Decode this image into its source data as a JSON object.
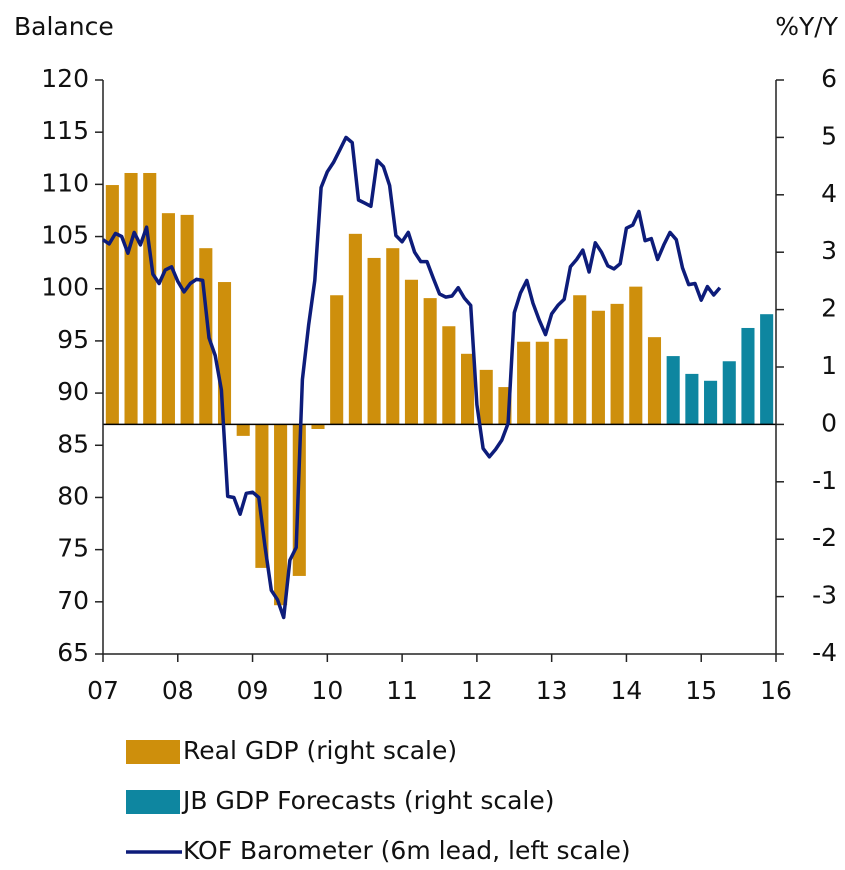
{
  "chart_data": {
    "type": "bar_line",
    "ylabel": "Balance",
    "y2label": "%Y/Y",
    "xlim": [
      2007,
      2016
    ],
    "xticks": [
      {
        "value": 2007,
        "label": "07"
      },
      {
        "value": 2008,
        "label": "08"
      },
      {
        "value": 2009,
        "label": "09"
      },
      {
        "value": 2010,
        "label": "10"
      },
      {
        "value": 2011,
        "label": "11"
      },
      {
        "value": 2012,
        "label": "12"
      },
      {
        "value": 2013,
        "label": "13"
      },
      {
        "value": 2014,
        "label": "14"
      },
      {
        "value": 2015,
        "label": "15"
      },
      {
        "value": 2016,
        "label": "16"
      }
    ],
    "ylim": [
      65,
      120
    ],
    "yticks": [
      65,
      70,
      75,
      80,
      85,
      90,
      95,
      100,
      105,
      110,
      115,
      120
    ],
    "y2lim": [
      -4,
      6
    ],
    "y2ticks": [
      -4,
      -3,
      -2,
      -1,
      0,
      1,
      2,
      3,
      4,
      5,
      6
    ],
    "series": [
      {
        "name": "Real GDP (right scale)",
        "type": "bar",
        "axis": "y2",
        "color": "#CE8F0C",
        "x": [
          2007.125,
          2007.375,
          2007.625,
          2007.875,
          2008.125,
          2008.375,
          2008.625,
          2008.875,
          2009.125,
          2009.375,
          2009.625,
          2009.875,
          2010.125,
          2010.375,
          2010.625,
          2010.875,
          2011.125,
          2011.375,
          2011.625,
          2011.875,
          2012.125,
          2012.375,
          2012.625,
          2012.875,
          2013.125,
          2013.375,
          2013.625,
          2013.875,
          2014.125,
          2014.375
        ],
        "values": [
          4.17,
          4.38,
          4.38,
          3.68,
          3.65,
          3.07,
          2.48,
          -0.2,
          -2.5,
          -3.15,
          -2.64,
          -0.08,
          2.25,
          3.32,
          2.9,
          3.07,
          2.52,
          2.2,
          1.71,
          1.23,
          0.95,
          0.65,
          1.44,
          1.44,
          1.49,
          2.25,
          1.98,
          2.1,
          2.4,
          1.52
        ]
      },
      {
        "name": "JB GDP Forecasts (right scale)",
        "type": "bar",
        "axis": "y2",
        "color": "#0E86A0",
        "x": [
          2014.625,
          2014.875,
          2015.125,
          2015.375,
          2015.625,
          2015.875
        ],
        "values": [
          1.19,
          0.88,
          0.76,
          1.1,
          1.68,
          1.92
        ]
      },
      {
        "name": "KOF Barometer (6m lead, left scale)",
        "type": "line",
        "color": "#0D1C7A",
        "x": [
          2007,
          2007.083,
          2007.167,
          2007.25,
          2007.333,
          2007.417,
          2007.5,
          2007.583,
          2007.667,
          2007.75,
          2007.833,
          2007.917,
          2008,
          2008.083,
          2008.167,
          2008.25,
          2008.333,
          2008.417,
          2008.5,
          2008.583,
          2008.667,
          2008.75,
          2008.833,
          2008.917,
          2009,
          2009.083,
          2009.167,
          2009.25,
          2009.333,
          2009.417,
          2009.5,
          2009.583,
          2009.667,
          2009.75,
          2009.833,
          2009.917,
          2010,
          2010.083,
          2010.167,
          2010.25,
          2010.333,
          2010.417,
          2010.5,
          2010.583,
          2010.667,
          2010.75,
          2010.833,
          2010.917,
          2011,
          2011.083,
          2011.167,
          2011.25,
          2011.333,
          2011.417,
          2011.5,
          2011.583,
          2011.667,
          2011.75,
          2011.833,
          2011.917,
          2012,
          2012.083,
          2012.167,
          2012.25,
          2012.333,
          2012.417,
          2012.5,
          2012.583,
          2012.667,
          2012.75,
          2012.833,
          2012.917,
          2013,
          2013.083,
          2013.167,
          2013.25,
          2013.333,
          2013.417,
          2013.5,
          2013.583,
          2013.667,
          2013.75,
          2013.833,
          2013.917,
          2014,
          2014.083,
          2014.167,
          2014.25,
          2014.333,
          2014.417,
          2014.5,
          2014.583,
          2014.667,
          2014.75,
          2014.833,
          2014.917,
          2015,
          2015.083,
          2015.167,
          2015.25
        ],
        "values": [
          104.7,
          104.3,
          105.3,
          105.0,
          103.4,
          105.4,
          104.2,
          105.9,
          101.4,
          100.5,
          101.8,
          102.1,
          100.7,
          99.7,
          100.5,
          100.9,
          100.8,
          95.3,
          93.6,
          90.3,
          80.1,
          80.0,
          78.4,
          80.4,
          80.5,
          80.0,
          75.3,
          71.1,
          70.2,
          68.5,
          74.0,
          75.2,
          91.3,
          96.5,
          100.8,
          109.7,
          111.2,
          112.1,
          113.3,
          114.5,
          114.0,
          108.5,
          108.2,
          107.9,
          112.3,
          111.7,
          109.9,
          105.1,
          104.5,
          105.4,
          103.5,
          102.6,
          102.6,
          101.0,
          99.5,
          99.2,
          99.3,
          100.1,
          99.1,
          98.4,
          88.9,
          84.7,
          83.9,
          84.6,
          85.5,
          87.1,
          97.7,
          99.6,
          100.8,
          98.6,
          97.0,
          95.6,
          97.6,
          98.4,
          99.0,
          102.1,
          102.8,
          103.7,
          101.6,
          104.4,
          103.5,
          102.2,
          101.9,
          102.4,
          105.8,
          106.1,
          107.4,
          104.6,
          104.8,
          102.8,
          104.2,
          105.4,
          104.7,
          102.0,
          100.4,
          100.5,
          98.9,
          100.2,
          99.4,
          100.1
        ]
      }
    ]
  }
}
